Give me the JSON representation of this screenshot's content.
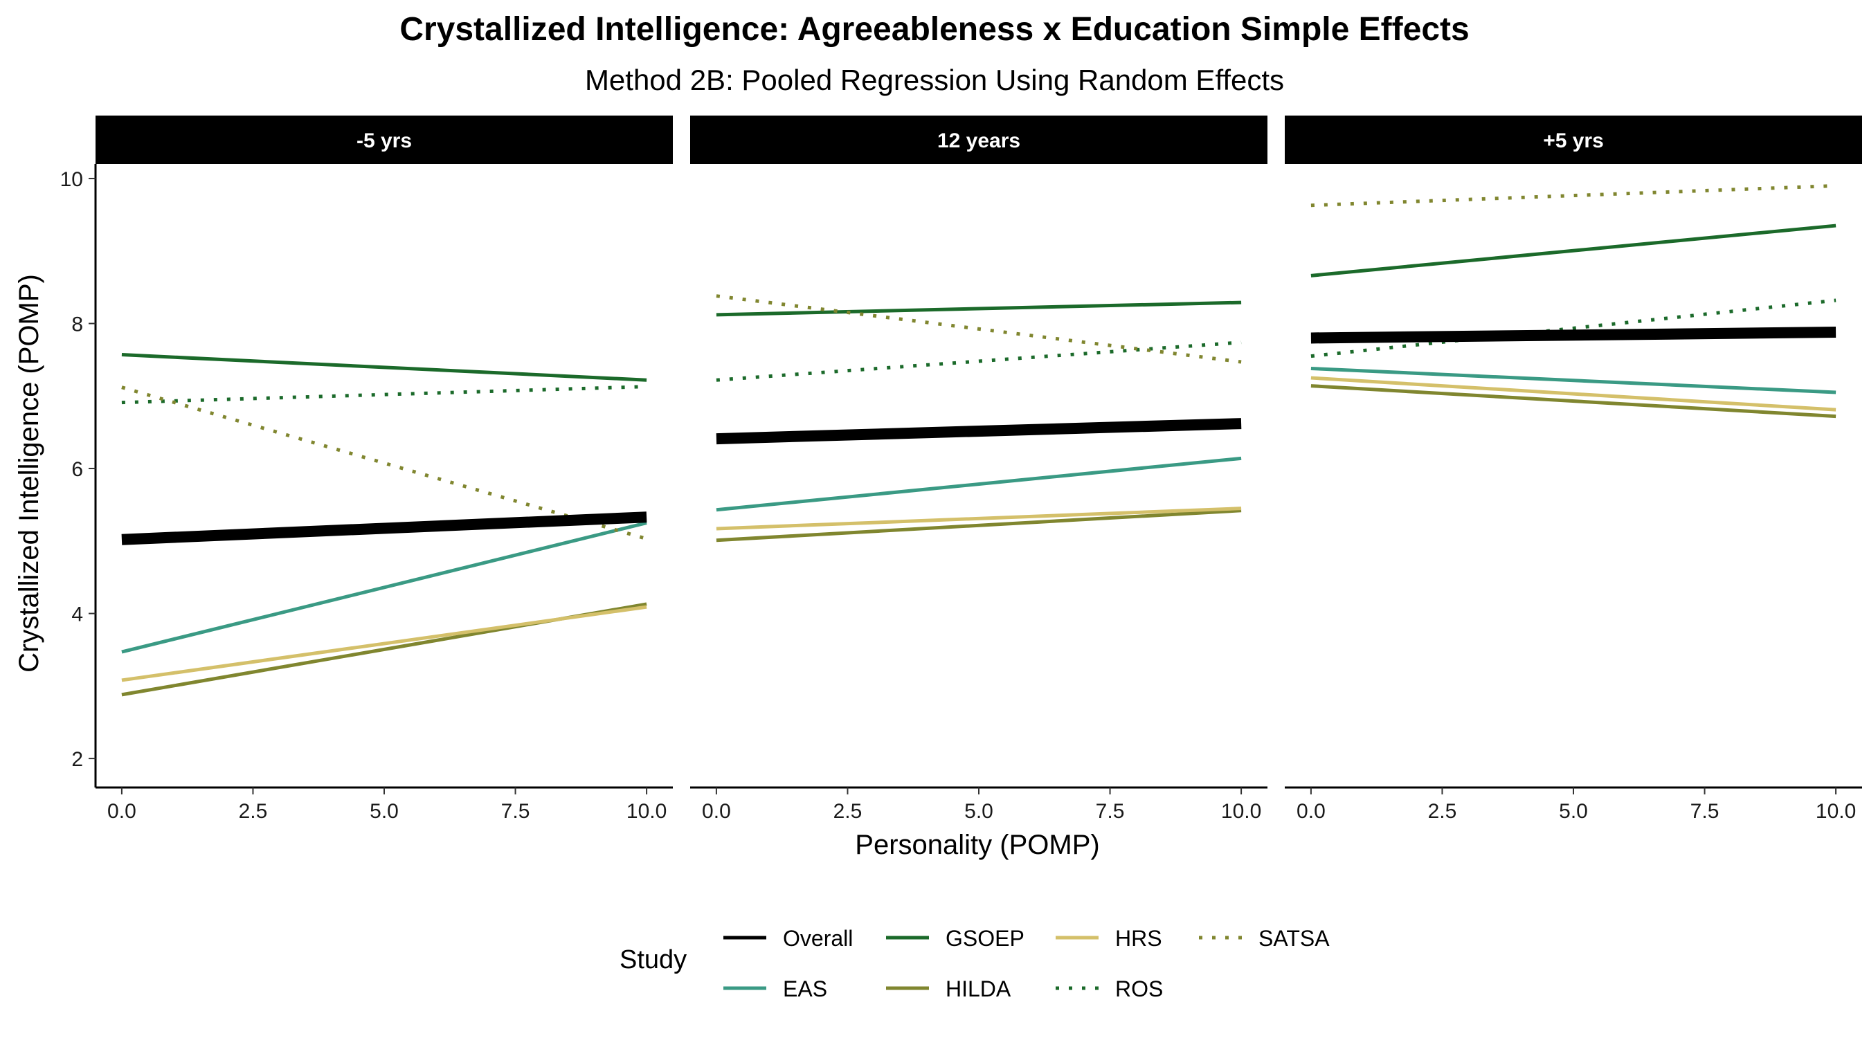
{
  "chart_data": {
    "type": "line",
    "title": "Crystallized Intelligence: Agreeableness x Education Simple Effects",
    "subtitle": "Method 2B: Pooled Regression Using Random Effects",
    "xlabel": "Personality (POMP)",
    "ylabel": "Crystallized Intelligence (POMP)",
    "xlim": [
      -0.5,
      10.5
    ],
    "ylim": [
      1.6,
      10.2
    ],
    "x_ticks": [
      "0.0",
      "2.5",
      "5.0",
      "7.5",
      "10.0"
    ],
    "x_tick_values": [
      0,
      2.5,
      5,
      7.5,
      10
    ],
    "y_ticks": [
      "2",
      "4",
      "6",
      "8",
      "10"
    ],
    "y_tick_values": [
      2,
      4,
      6,
      8,
      10
    ],
    "legend": {
      "title": "Study",
      "position": "bottom"
    },
    "series_styles": [
      {
        "name": "Overall",
        "color": "#000000",
        "dash": "solid",
        "bold": true
      },
      {
        "name": "EAS",
        "color": "#3a9a84",
        "dash": "solid",
        "bold": false
      },
      {
        "name": "GSOEP",
        "color": "#1b6a2a",
        "dash": "solid",
        "bold": false
      },
      {
        "name": "HILDA",
        "color": "#80862f",
        "dash": "solid",
        "bold": false
      },
      {
        "name": "HRS",
        "color": "#d4c06a",
        "dash": "solid",
        "bold": false
      },
      {
        "name": "ROS",
        "color": "#1b6a2a",
        "dash": "dotted",
        "bold": false
      },
      {
        "name": "SATSA",
        "color": "#80862f",
        "dash": "dotted",
        "bold": false
      }
    ],
    "facets": [
      {
        "label": "-5 yrs",
        "series": [
          {
            "name": "Overall",
            "x": [
              0,
              10
            ],
            "y": [
              5.02,
              5.33
            ]
          },
          {
            "name": "EAS",
            "x": [
              0,
              10
            ],
            "y": [
              3.47,
              5.25
            ]
          },
          {
            "name": "GSOEP",
            "x": [
              0,
              10
            ],
            "y": [
              7.57,
              7.22
            ]
          },
          {
            "name": "HILDA",
            "x": [
              0,
              10
            ],
            "y": [
              2.88,
              4.13
            ]
          },
          {
            "name": "HRS",
            "x": [
              0,
              10
            ],
            "y": [
              3.08,
              4.09
            ]
          },
          {
            "name": "ROS",
            "x": [
              0,
              10
            ],
            "y": [
              6.91,
              7.13
            ]
          },
          {
            "name": "SATSA",
            "x": [
              0,
              10
            ],
            "y": [
              7.12,
              5.03
            ]
          }
        ]
      },
      {
        "label": "12 years",
        "series": [
          {
            "name": "Overall",
            "x": [
              0,
              10
            ],
            "y": [
              6.41,
              6.62
            ]
          },
          {
            "name": "EAS",
            "x": [
              0,
              10
            ],
            "y": [
              5.43,
              6.14
            ]
          },
          {
            "name": "GSOEP",
            "x": [
              0,
              10
            ],
            "y": [
              8.12,
              8.29
            ]
          },
          {
            "name": "HILDA",
            "x": [
              0,
              10
            ],
            "y": [
              5.01,
              5.42
            ]
          },
          {
            "name": "HRS",
            "x": [
              0,
              10
            ],
            "y": [
              5.17,
              5.45
            ]
          },
          {
            "name": "ROS",
            "x": [
              0,
              10
            ],
            "y": [
              7.22,
              7.74
            ]
          },
          {
            "name": "SATSA",
            "x": [
              0,
              10
            ],
            "y": [
              8.38,
              7.47
            ]
          }
        ]
      },
      {
        "label": "+5 yrs",
        "series": [
          {
            "name": "Overall",
            "x": [
              0,
              10
            ],
            "y": [
              7.8,
              7.88
            ]
          },
          {
            "name": "EAS",
            "x": [
              0,
              10
            ],
            "y": [
              7.38,
              7.05
            ]
          },
          {
            "name": "GSOEP",
            "x": [
              0,
              10
            ],
            "y": [
              8.66,
              9.35
            ]
          },
          {
            "name": "HILDA",
            "x": [
              0,
              10
            ],
            "y": [
              7.14,
              6.72
            ]
          },
          {
            "name": "HRS",
            "x": [
              0,
              10
            ],
            "y": [
              7.25,
              6.81
            ]
          },
          {
            "name": "ROS",
            "x": [
              0,
              10
            ],
            "y": [
              7.55,
              8.32
            ]
          },
          {
            "name": "SATSA",
            "x": [
              0,
              10
            ],
            "y": [
              9.63,
              9.9
            ]
          }
        ]
      }
    ]
  }
}
